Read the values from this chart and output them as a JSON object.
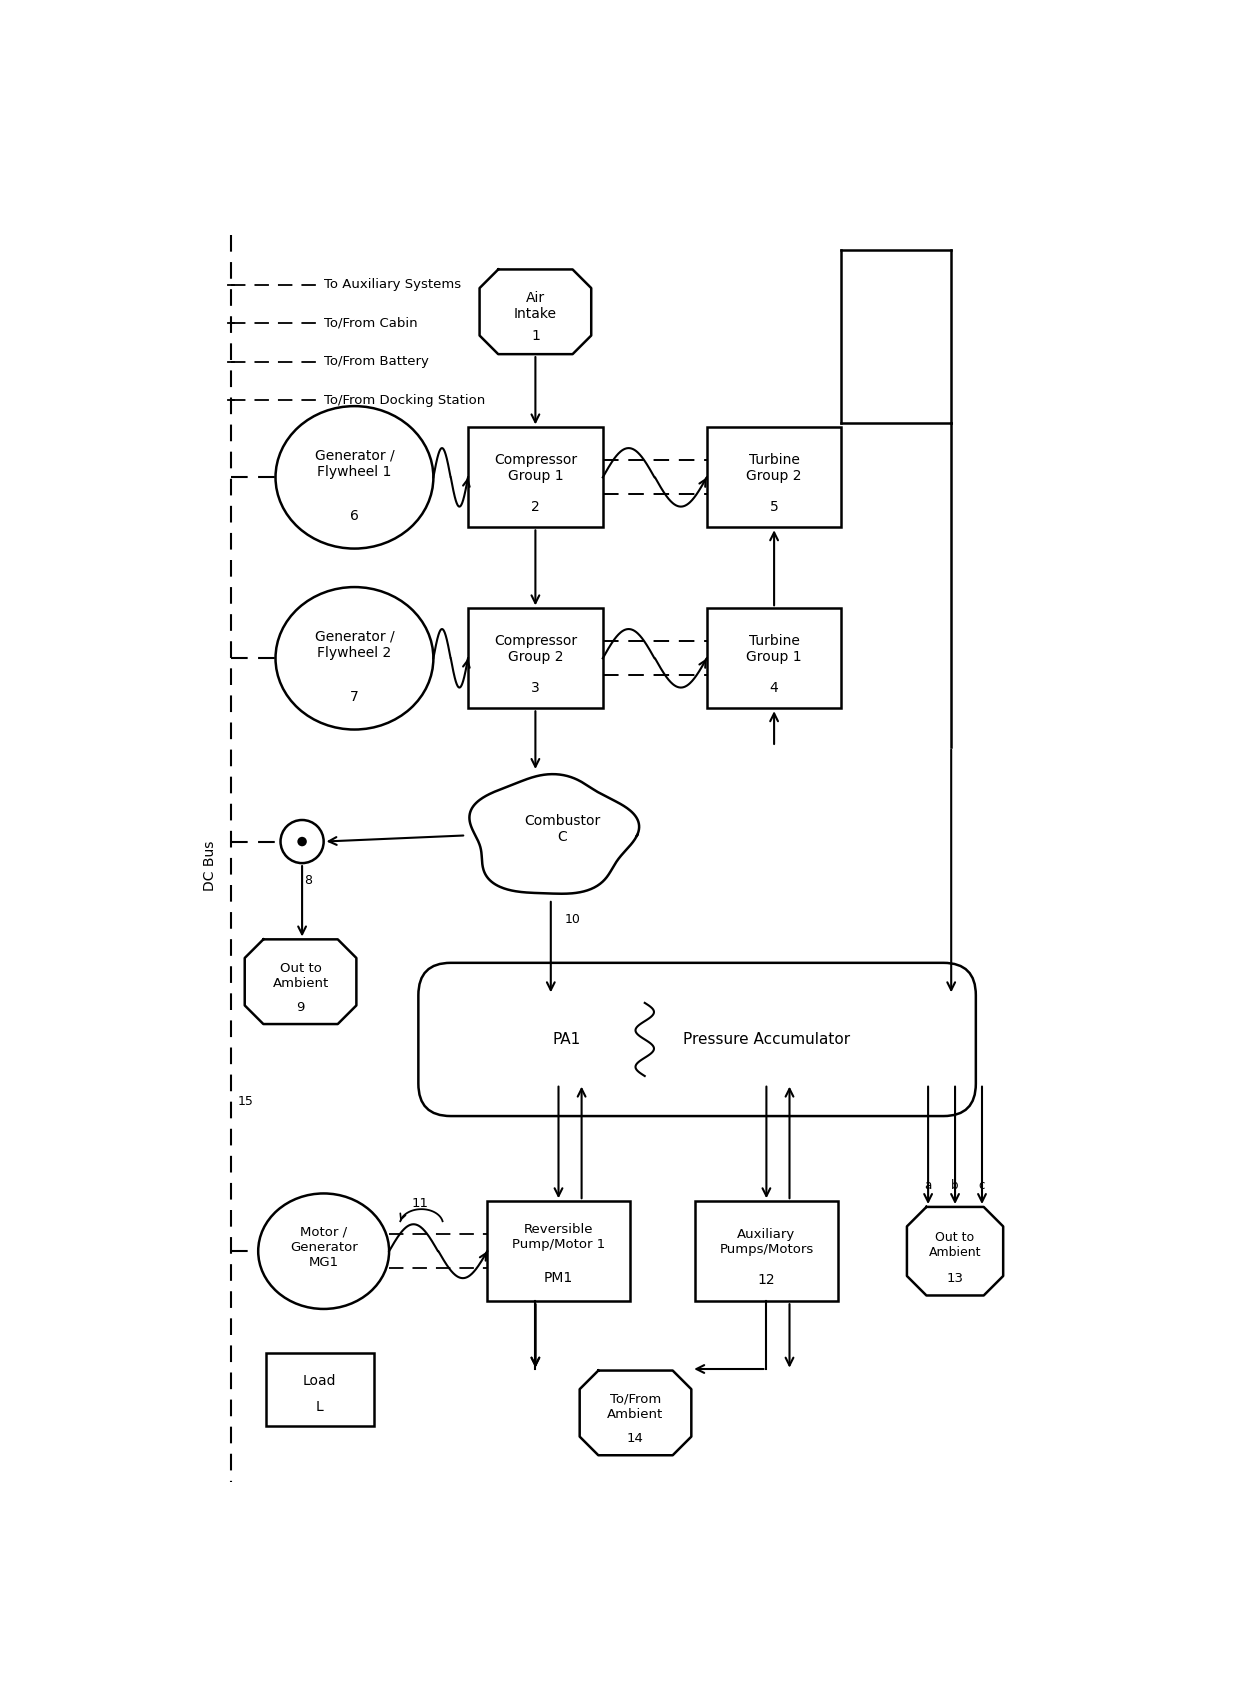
{
  "bg": "#ffffff",
  "lc": "#000000",
  "fw": 12.4,
  "fh": 17.0,
  "legend": [
    "To Auxiliary Systems",
    "To/From Cabin",
    "To/From Battery",
    "To/From Docking Station"
  ]
}
